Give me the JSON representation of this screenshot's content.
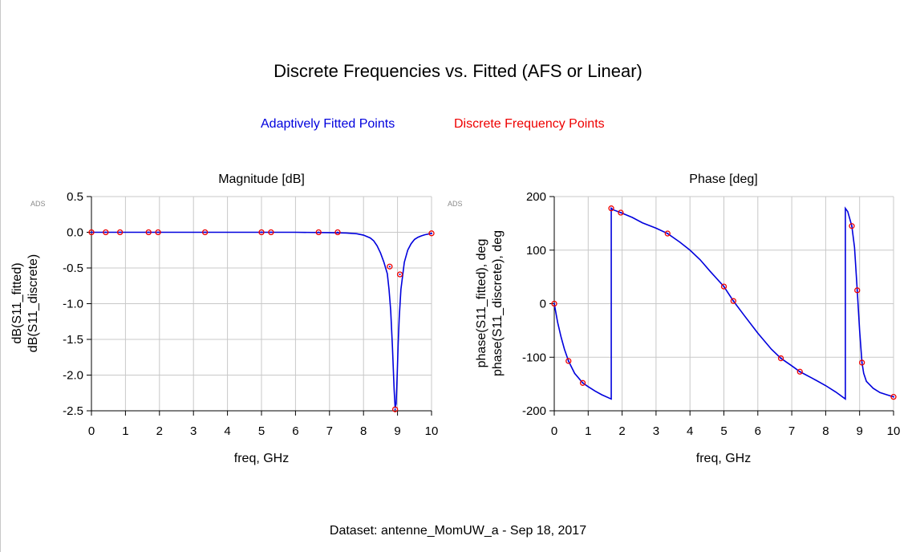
{
  "title": "Discrete Frequencies vs. Fitted (AFS or Linear)",
  "legend": {
    "fitted": "Adaptively Fitted Points",
    "discrete": "Discrete Frequency Points"
  },
  "footer": "Dataset: antenne_MomUW_a - Sep 18, 2017",
  "colors": {
    "fitted": "#0000dd",
    "discrete": "#ee0000",
    "grid": "#c8c8c8"
  },
  "chart_data": [
    {
      "type": "line",
      "title": "Magnitude [dB]",
      "watermark": "ADS",
      "xlabel": "freq, GHz",
      "ylabel_series": [
        "dB(S11_fitted)",
        "dB(S11_discrete)"
      ],
      "xlim": [
        0,
        10
      ],
      "ylim": [
        -2.5,
        0.5
      ],
      "xticks": [
        0,
        1,
        2,
        3,
        4,
        5,
        6,
        7,
        8,
        9,
        10
      ],
      "yticks": [
        0.5,
        0.0,
        -0.5,
        -1.0,
        -1.5,
        -2.0,
        -2.5
      ],
      "ytick_labels": [
        "0.5",
        "0.0",
        "-0.5",
        "-1.0",
        "-1.5",
        "-2.0",
        "-2.5"
      ],
      "grid": true,
      "series": [
        {
          "name": "dB(S11_fitted)",
          "style": "line",
          "x": [
            0,
            1,
            2,
            3,
            4,
            5,
            6,
            7,
            7.5,
            7.8,
            8.0,
            8.2,
            8.3,
            8.4,
            8.5,
            8.6,
            8.7,
            8.75,
            8.8,
            8.85,
            8.9,
            8.93,
            8.96,
            8.99,
            9.02,
            9.05,
            9.1,
            9.2,
            9.3,
            9.4,
            9.5,
            9.6,
            9.7,
            9.8,
            9.9,
            10
          ],
          "y": [
            0,
            0,
            0,
            0,
            0,
            0,
            0,
            -0.005,
            -0.01,
            -0.02,
            -0.04,
            -0.08,
            -0.12,
            -0.19,
            -0.29,
            -0.42,
            -0.58,
            -0.8,
            -1.1,
            -1.6,
            -2.2,
            -2.46,
            -2.4,
            -2.0,
            -1.55,
            -1.2,
            -0.8,
            -0.42,
            -0.25,
            -0.16,
            -0.1,
            -0.07,
            -0.05,
            -0.035,
            -0.025,
            -0.015
          ]
        },
        {
          "name": "dB(S11_discrete)",
          "style": "markers",
          "x": [
            0,
            0.42,
            0.84,
            1.68,
            1.96,
            3.34,
            5.0,
            5.28,
            6.68,
            7.24,
            8.77,
            8.93,
            9.07,
            10
          ],
          "y": [
            0,
            0,
            0,
            0,
            0,
            0,
            0,
            0,
            0,
            0,
            -0.48,
            -2.48,
            -0.59,
            -0.015
          ]
        }
      ]
    },
    {
      "type": "line",
      "title": "Phase [deg]",
      "watermark": "ADS",
      "xlabel": "freq, GHz",
      "ylabel_series": [
        "phase(S11_fitted), deg",
        "phase(S11_discrete), deg"
      ],
      "xlim": [
        0,
        10
      ],
      "ylim": [
        -200,
        200
      ],
      "xticks": [
        0,
        1,
        2,
        3,
        4,
        5,
        6,
        7,
        8,
        9,
        10
      ],
      "yticks": [
        200,
        100,
        0,
        -100,
        -200
      ],
      "ytick_labels": [
        "200",
        "100",
        "0",
        "-100",
        "-200"
      ],
      "grid": true,
      "series": [
        {
          "name": "phase(S11_fitted), deg",
          "style": "line",
          "x": [
            0,
            0.1,
            0.2,
            0.3,
            0.42,
            0.6,
            0.84,
            1.0,
            1.2,
            1.4,
            1.68,
            1.68,
            1.75,
            1.96,
            2.3,
            2.6,
            3.0,
            3.34,
            3.7,
            4.0,
            4.3,
            4.6,
            5.0,
            5.28,
            5.6,
            6.0,
            6.4,
            6.68,
            7.0,
            7.24,
            7.6,
            8.0,
            8.3,
            8.58,
            8.58,
            8.65,
            8.77,
            8.85,
            8.93,
            9.0,
            9.07,
            9.12,
            9.2,
            9.4,
            9.6,
            9.8,
            10
          ],
          "y": [
            0,
            -35,
            -62,
            -85,
            -107,
            -130,
            -148,
            -155,
            -163,
            -170,
            -178,
            178,
            175,
            170,
            161,
            151,
            141,
            131,
            115,
            100,
            82,
            60,
            32,
            5,
            -22,
            -55,
            -85,
            -102,
            -116,
            -127,
            -139,
            -153,
            -165,
            -178,
            178,
            172,
            145,
            105,
            25,
            -50,
            -110,
            -130,
            -145,
            -158,
            -166,
            -170,
            -174
          ]
        },
        {
          "name": "phase(S11_discrete), deg",
          "style": "markers",
          "x": [
            0,
            0.42,
            0.84,
            1.68,
            1.96,
            3.34,
            5.0,
            5.28,
            6.68,
            7.24,
            8.77,
            8.93,
            9.07,
            10
          ],
          "y": [
            0,
            -107,
            -148,
            178,
            170,
            131,
            32,
            5,
            -102,
            -127,
            145,
            25,
            -110,
            -174
          ]
        }
      ]
    }
  ]
}
